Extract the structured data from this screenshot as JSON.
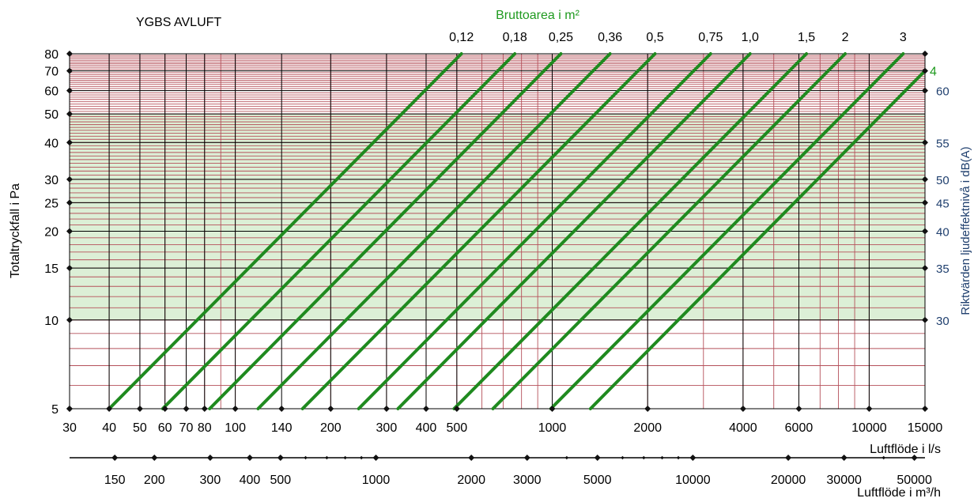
{
  "chart_data": {
    "type": "line",
    "title": "YGBS AVLUFT",
    "xlabel": "Luftflöde i l/s",
    "ylabel": "Totaltryckfall i Pa",
    "y2label": "Riktvärden ljudeffektnivå i dB(A)",
    "x2label": "Luftflöde i m³/h",
    "series_title": "Bruttoarea i m²",
    "x_scale": "log",
    "y_scale": "log",
    "xlim": [
      30,
      15000
    ],
    "ylim": [
      5,
      80
    ],
    "x_ticks": [
      30,
      40,
      50,
      60,
      70,
      80,
      100,
      140,
      200,
      300,
      400,
      500,
      1000,
      2000,
      4000,
      6000,
      10000,
      15000
    ],
    "x_tick_labels": [
      "30",
      "40",
      "50",
      "60",
      "70",
      "80",
      "100",
      "140",
      "200",
      "300",
      "400",
      "500",
      "1000",
      "2000",
      "4000",
      "6000",
      "10000",
      "15000"
    ],
    "y_ticks": [
      5,
      10,
      15,
      20,
      25,
      30,
      40,
      50,
      60,
      70,
      80
    ],
    "y_tick_labels": [
      "5",
      "10",
      "15",
      "20",
      "25",
      "30",
      "40",
      "50",
      "60",
      "70",
      "80"
    ],
    "y2_ticks": [
      {
        "pa": 10,
        "label": "30"
      },
      {
        "pa": 15,
        "label": "35"
      },
      {
        "pa": 20,
        "label": "40"
      },
      {
        "pa": 25,
        "label": "45"
      },
      {
        "pa": 30,
        "label": "50"
      },
      {
        "pa": 40,
        "label": "55"
      },
      {
        "pa": 60,
        "label": "60"
      }
    ],
    "x2_ticks": [
      150,
      200,
      300,
      400,
      500,
      1000,
      2000,
      3000,
      5000,
      10000,
      20000,
      30000,
      50000
    ],
    "x2_tick_labels": [
      "150",
      "200",
      "300",
      "400",
      "500",
      "1000",
      "2000",
      "3000",
      "5000",
      "10000",
      "20000",
      "30000",
      "50000"
    ],
    "shaded_region": {
      "y_from": 10,
      "y_to": 50,
      "color": "#dcefd6"
    },
    "grid": true,
    "colors": {
      "series": "#1f8a1f",
      "grid_major": "#000000",
      "grid_minor": "#b5505a",
      "label_green": "#1f9a1f",
      "label_blue": "#1f3f6e"
    },
    "series": [
      {
        "name": "0,12",
        "x": [
          40,
          517
        ],
        "y": [
          5,
          80
        ]
      },
      {
        "name": "0,18",
        "x": [
          59,
          762
        ],
        "y": [
          5,
          80
        ]
      },
      {
        "name": "0,25",
        "x": [
          83,
          1065
        ],
        "y": [
          5,
          80
        ]
      },
      {
        "name": "0,36",
        "x": [
          118,
          1522
        ],
        "y": [
          5,
          80
        ]
      },
      {
        "name": "0,5",
        "x": [
          163,
          2110
        ],
        "y": [
          5,
          80
        ]
      },
      {
        "name": "0,75",
        "x": [
          245,
          3160
        ],
        "y": [
          5,
          80
        ]
      },
      {
        "name": "1,0",
        "x": [
          326,
          4210
        ],
        "y": [
          5,
          80
        ]
      },
      {
        "name": "1,5",
        "x": [
          490,
          6340
        ],
        "y": [
          5,
          80
        ]
      },
      {
        "name": "2",
        "x": [
          650,
          8400
        ],
        "y": [
          5,
          80
        ]
      },
      {
        "name": "3",
        "x": [
          990,
          12800
        ],
        "y": [
          5,
          80
        ]
      },
      {
        "name": "4",
        "x": [
          1320,
          15000
        ],
        "y": [
          5,
          70
        ]
      }
    ]
  }
}
